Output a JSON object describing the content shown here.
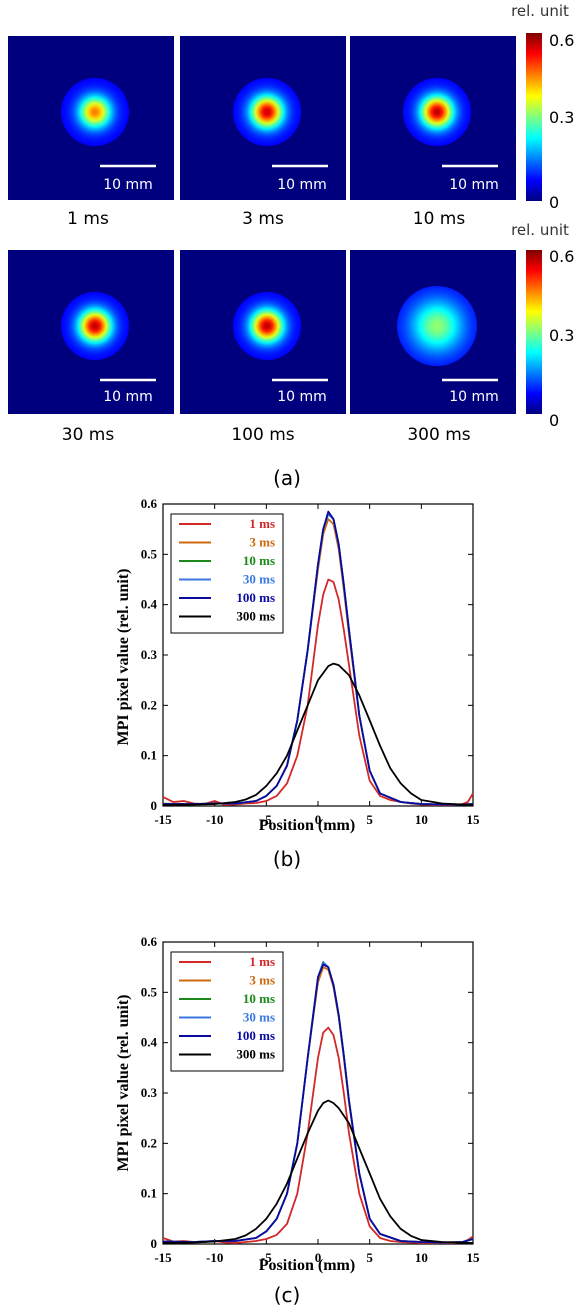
{
  "panel_a": {
    "label": "(a)",
    "scale_bar_text": "10 mm",
    "images": [
      {
        "caption": "1 ms",
        "peak": 0.45
      },
      {
        "caption": "3 ms",
        "peak": 0.57
      },
      {
        "caption": "10 ms",
        "peak": 0.58
      },
      {
        "caption": "30 ms",
        "peak": 0.58
      },
      {
        "caption": "100 ms",
        "peak": 0.58
      },
      {
        "caption": "300 ms",
        "peak": 0.28
      }
    ],
    "colorbar": {
      "unit": "rel. unit",
      "ticks": [
        "0.6",
        "0.3",
        "0"
      ]
    }
  },
  "chart_data": [
    {
      "type": "line",
      "panel_label": "(b)",
      "xlabel": "Position (mm)",
      "ylabel": "MPI pixel value (rel. unit)",
      "xlim": [
        -15,
        15
      ],
      "ylim": [
        0,
        0.6
      ],
      "xticks": [
        "-15",
        "-10",
        "-5",
        "0",
        "5",
        "10",
        "15"
      ],
      "yticks": [
        "0",
        "0.1",
        "0.2",
        "0.3",
        "0.4",
        "0.5",
        "0.6"
      ],
      "legend_position": "top-left",
      "series": [
        {
          "name": "1 ms",
          "color": "#d42828",
          "x": [
            -15,
            -14,
            -13,
            -12,
            -11,
            -10,
            -9,
            -8,
            -7,
            -6,
            -5,
            -4,
            -3,
            -2,
            -1,
            0,
            0.5,
            1,
            1.5,
            2,
            2.5,
            3,
            4,
            5,
            6,
            7,
            8,
            9,
            10,
            11,
            12,
            13,
            14,
            14.5,
            15
          ],
          "y": [
            0.018,
            0.008,
            0.01,
            0.005,
            0.004,
            0.01,
            0.002,
            0.003,
            0.005,
            0.006,
            0.01,
            0.02,
            0.045,
            0.1,
            0.2,
            0.36,
            0.42,
            0.45,
            0.445,
            0.41,
            0.35,
            0.28,
            0.14,
            0.05,
            0.02,
            0.012,
            0.008,
            0.005,
            0.003,
            0.002,
            0.002,
            0.002,
            0.004,
            0.008,
            0.025
          ]
        },
        {
          "name": "3 ms",
          "color": "#cc6a10",
          "x": [
            -15,
            -12,
            -10,
            -8,
            -6,
            -5,
            -4,
            -3,
            -2,
            -1,
            0,
            0.5,
            1,
            1.5,
            2,
            2.5,
            3,
            4,
            5,
            6,
            8,
            10,
            12,
            14,
            15
          ],
          "y": [
            0.005,
            0.004,
            0.005,
            0.005,
            0.01,
            0.02,
            0.04,
            0.08,
            0.17,
            0.31,
            0.47,
            0.54,
            0.57,
            0.56,
            0.51,
            0.43,
            0.34,
            0.18,
            0.07,
            0.025,
            0.008,
            0.004,
            0.003,
            0.003,
            0.004
          ]
        },
        {
          "name": "10 ms",
          "color": "#1a8a1a",
          "x": [
            -15,
            -12,
            -10,
            -8,
            -6,
            -5,
            -4,
            -3,
            -2,
            -1,
            0,
            0.5,
            1,
            1.5,
            2,
            2.5,
            3,
            4,
            5,
            6,
            8,
            10,
            12,
            14,
            15
          ],
          "y": [
            0.004,
            0.004,
            0.005,
            0.005,
            0.01,
            0.02,
            0.04,
            0.08,
            0.17,
            0.31,
            0.48,
            0.55,
            0.58,
            0.57,
            0.52,
            0.44,
            0.35,
            0.18,
            0.07,
            0.025,
            0.008,
            0.004,
            0.003,
            0.003,
            0.004
          ]
        },
        {
          "name": "30 ms",
          "color": "#3a78e0",
          "x": [
            -15,
            -12,
            -10,
            -8,
            -6,
            -5,
            -4,
            -3,
            -2,
            -1,
            0,
            0.5,
            1,
            1.5,
            2,
            2.5,
            3,
            4,
            5,
            6,
            8,
            10,
            12,
            14,
            15
          ],
          "y": [
            0.004,
            0.004,
            0.005,
            0.005,
            0.01,
            0.02,
            0.04,
            0.08,
            0.17,
            0.31,
            0.48,
            0.55,
            0.58,
            0.57,
            0.52,
            0.44,
            0.35,
            0.18,
            0.07,
            0.025,
            0.008,
            0.004,
            0.003,
            0.003,
            0.004
          ]
        },
        {
          "name": "100 ms",
          "color": "#0a0aa0",
          "x": [
            -15,
            -12,
            -10,
            -8,
            -6,
            -5,
            -4,
            -3,
            -2,
            -1,
            0,
            0.5,
            1,
            1.5,
            2,
            2.5,
            3,
            4,
            5,
            6,
            8,
            10,
            12,
            14,
            15
          ],
          "y": [
            0.004,
            0.004,
            0.005,
            0.005,
            0.01,
            0.02,
            0.04,
            0.08,
            0.17,
            0.31,
            0.48,
            0.55,
            0.585,
            0.57,
            0.52,
            0.44,
            0.35,
            0.18,
            0.07,
            0.025,
            0.008,
            0.004,
            0.003,
            0.003,
            0.004
          ]
        },
        {
          "name": "300 ms",
          "color": "#000000",
          "x": [
            -15,
            -12,
            -10,
            -8,
            -7,
            -6,
            -5,
            -4,
            -3,
            -2,
            -1,
            0,
            1,
            1.5,
            2,
            3,
            4,
            5,
            6,
            7,
            8,
            9,
            10,
            12,
            15
          ],
          "y": [
            0.002,
            0.003,
            0.004,
            0.008,
            0.013,
            0.022,
            0.04,
            0.065,
            0.1,
            0.15,
            0.2,
            0.25,
            0.278,
            0.283,
            0.28,
            0.26,
            0.22,
            0.17,
            0.12,
            0.075,
            0.045,
            0.025,
            0.012,
            0.005,
            0.002
          ]
        }
      ]
    },
    {
      "type": "line",
      "panel_label": "(c)",
      "xlabel": "Position (mm)",
      "ylabel": "MPI pixel value (rel. unit)",
      "xlim": [
        -15,
        15
      ],
      "ylim": [
        0,
        0.6
      ],
      "xticks": [
        "-15",
        "-10",
        "-5",
        "0",
        "5",
        "10",
        "15"
      ],
      "yticks": [
        "0",
        "0.1",
        "0.2",
        "0.3",
        "0.4",
        "0.5",
        "0.6"
      ],
      "legend_position": "top-left",
      "series": [
        {
          "name": "1 ms",
          "color": "#d42828",
          "x": [
            -15,
            -14,
            -13,
            -12,
            -11,
            -10,
            -9,
            -8,
            -7,
            -6,
            -5,
            -4,
            -3,
            -2,
            -1,
            0,
            0.5,
            1,
            1.5,
            2,
            2.5,
            3,
            4,
            5,
            6,
            7,
            8,
            9,
            10,
            11,
            12,
            13,
            14,
            14.5,
            15
          ],
          "y": [
            0.012,
            0.005,
            0.006,
            0.004,
            0.004,
            0.006,
            0.003,
            0.002,
            0.004,
            0.006,
            0.01,
            0.018,
            0.04,
            0.1,
            0.22,
            0.37,
            0.42,
            0.43,
            0.415,
            0.37,
            0.3,
            0.22,
            0.1,
            0.035,
            0.012,
            0.006,
            0.004,
            0.003,
            0.002,
            0.002,
            0.002,
            0.002,
            0.004,
            0.008,
            0.015
          ]
        },
        {
          "name": "3 ms",
          "color": "#cc6a10",
          "x": [
            -15,
            -12,
            -10,
            -8,
            -6,
            -5,
            -4,
            -3,
            -2,
            -1,
            0,
            0.5,
            1,
            1.5,
            2,
            2.5,
            3,
            4,
            5,
            6,
            8,
            10,
            12,
            14,
            15
          ],
          "y": [
            0.005,
            0.004,
            0.006,
            0.006,
            0.012,
            0.025,
            0.05,
            0.1,
            0.2,
            0.37,
            0.52,
            0.55,
            0.545,
            0.51,
            0.45,
            0.37,
            0.28,
            0.14,
            0.05,
            0.02,
            0.006,
            0.004,
            0.003,
            0.004,
            0.01
          ]
        },
        {
          "name": "10 ms",
          "color": "#1a8a1a",
          "x": [
            -15,
            -12,
            -10,
            -8,
            -6,
            -5,
            -4,
            -3,
            -2,
            -1,
            0,
            0.5,
            1,
            1.5,
            2,
            2.5,
            3,
            4,
            5,
            6,
            8,
            10,
            12,
            14,
            15
          ],
          "y": [
            0.005,
            0.004,
            0.006,
            0.006,
            0.012,
            0.025,
            0.05,
            0.1,
            0.2,
            0.37,
            0.53,
            0.56,
            0.55,
            0.515,
            0.455,
            0.375,
            0.285,
            0.14,
            0.05,
            0.02,
            0.006,
            0.004,
            0.003,
            0.004,
            0.01
          ]
        },
        {
          "name": "30 ms",
          "color": "#3a78e0",
          "x": [
            -15,
            -12,
            -10,
            -8,
            -6,
            -5,
            -4,
            -3,
            -2,
            -1,
            0,
            0.5,
            1,
            1.5,
            2,
            2.5,
            3,
            4,
            5,
            6,
            8,
            10,
            12,
            14,
            15
          ],
          "y": [
            0.005,
            0.004,
            0.006,
            0.006,
            0.012,
            0.025,
            0.05,
            0.1,
            0.2,
            0.37,
            0.53,
            0.56,
            0.55,
            0.515,
            0.455,
            0.375,
            0.285,
            0.14,
            0.05,
            0.02,
            0.006,
            0.004,
            0.003,
            0.004,
            0.01
          ]
        },
        {
          "name": "100 ms",
          "color": "#0a0aa0",
          "x": [
            -15,
            -12,
            -10,
            -8,
            -6,
            -5,
            -4,
            -3,
            -2,
            -1,
            0,
            0.5,
            1,
            1.5,
            2,
            2.5,
            3,
            4,
            5,
            6,
            8,
            10,
            12,
            14,
            15
          ],
          "y": [
            0.005,
            0.004,
            0.006,
            0.006,
            0.012,
            0.025,
            0.05,
            0.1,
            0.2,
            0.37,
            0.53,
            0.555,
            0.55,
            0.515,
            0.455,
            0.375,
            0.285,
            0.14,
            0.05,
            0.02,
            0.006,
            0.004,
            0.003,
            0.004,
            0.01
          ]
        },
        {
          "name": "300 ms",
          "color": "#000000",
          "x": [
            -15,
            -12,
            -10,
            -8,
            -7,
            -6,
            -5,
            -4,
            -3,
            -2,
            -1,
            0,
            0.5,
            1,
            1.5,
            2,
            3,
            4,
            5,
            6,
            7,
            8,
            9,
            10,
            12,
            15
          ],
          "y": [
            0.002,
            0.003,
            0.005,
            0.01,
            0.017,
            0.03,
            0.05,
            0.08,
            0.12,
            0.17,
            0.22,
            0.265,
            0.28,
            0.285,
            0.28,
            0.27,
            0.24,
            0.19,
            0.14,
            0.09,
            0.055,
            0.03,
            0.016,
            0.008,
            0.004,
            0.002
          ]
        }
      ]
    }
  ]
}
